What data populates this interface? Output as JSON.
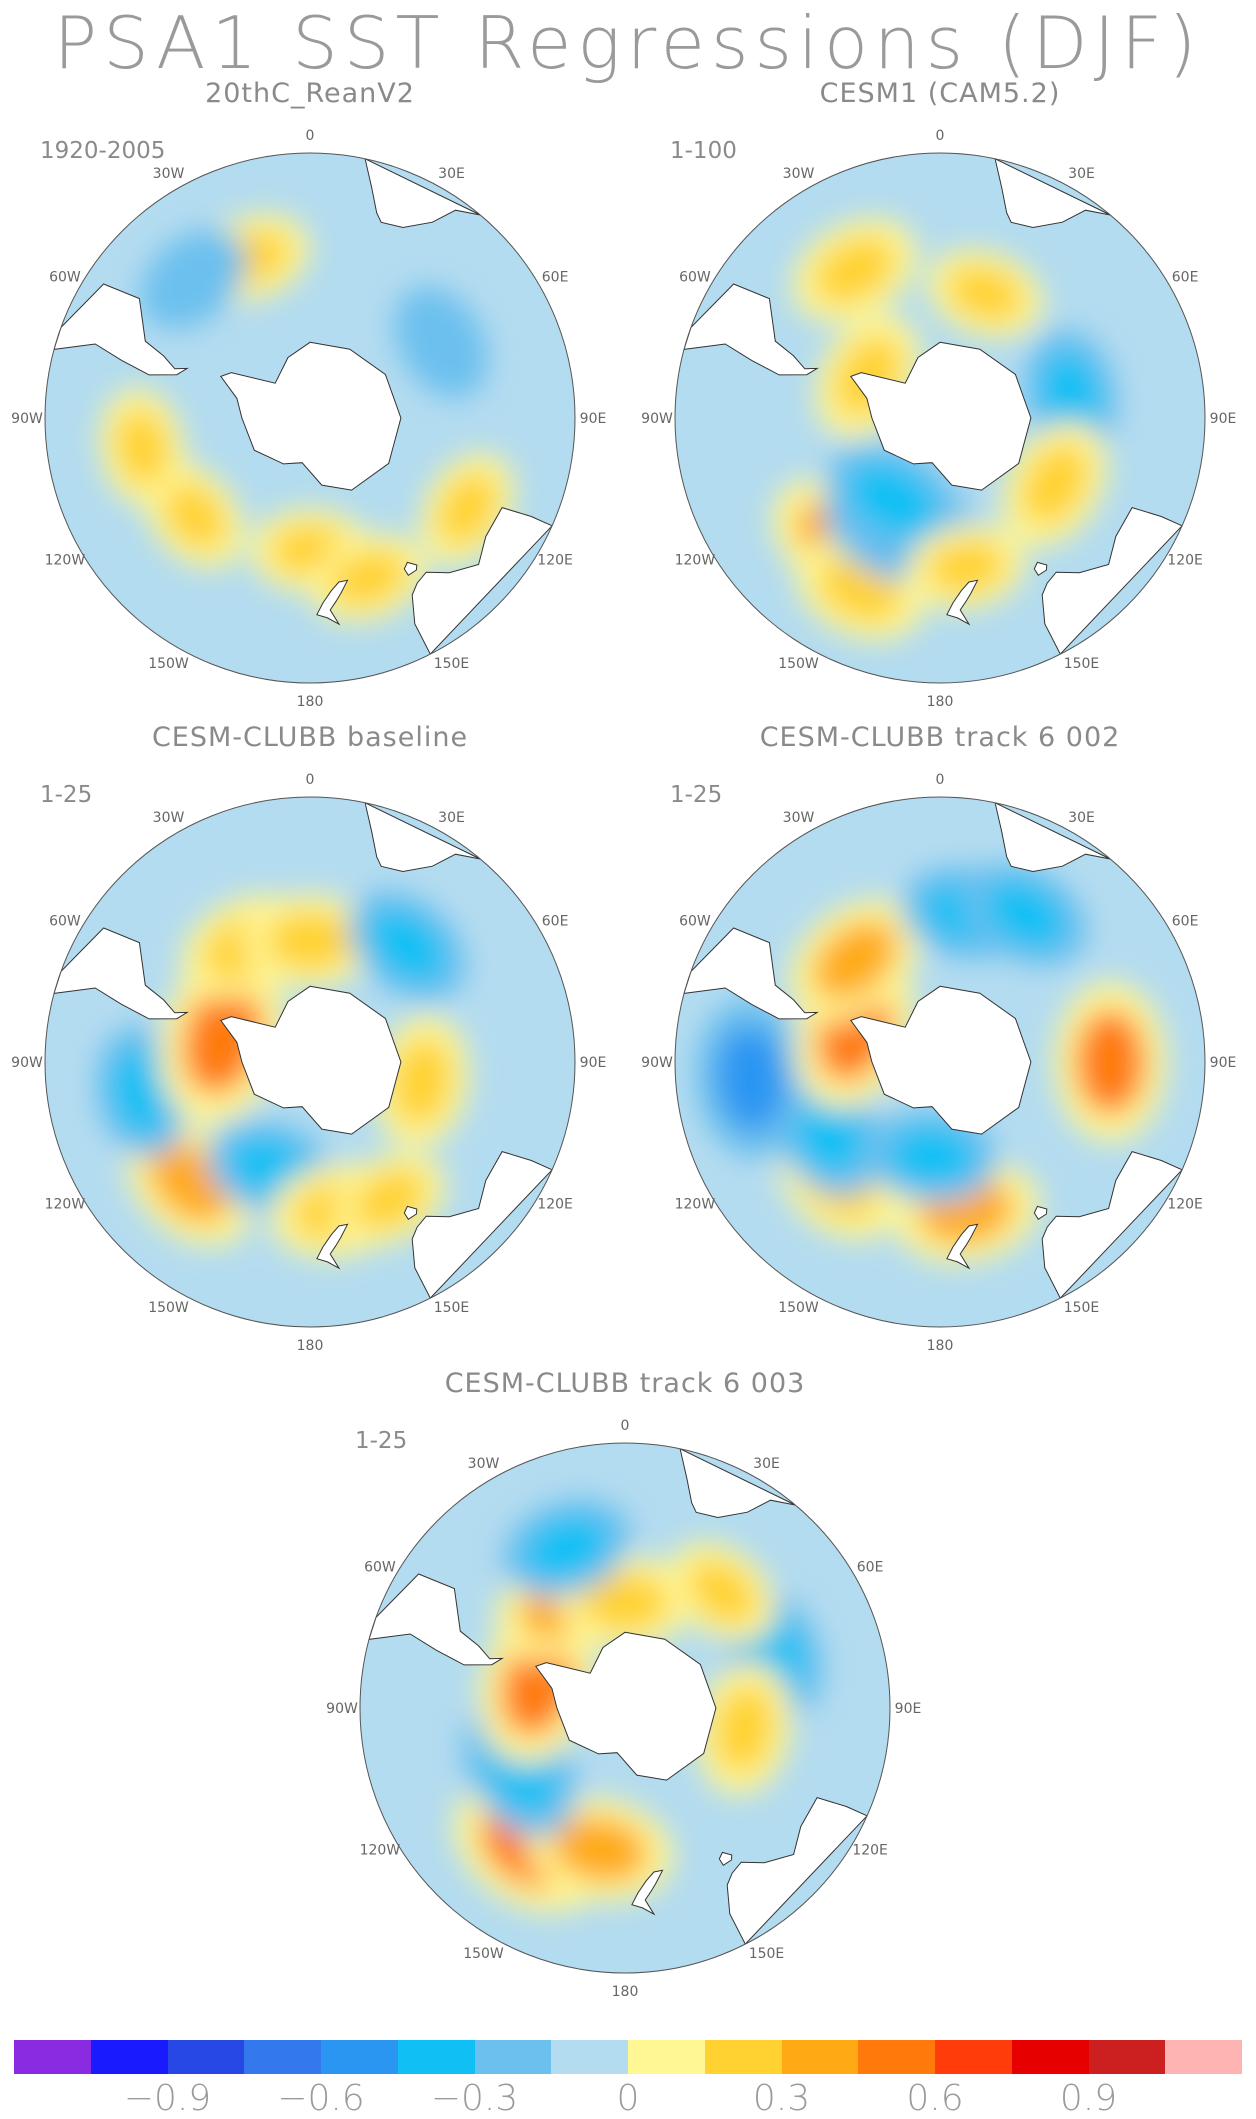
{
  "title": "PSA1 SST Regressions (DJF)",
  "panels": [
    {
      "title": "20thC_ReanV2",
      "period": "1920-2005",
      "blobs": [
        {
          "lon": 180,
          "lat": -55,
          "value": 0.2
        },
        {
          "lon": -130,
          "lat": -50,
          "value": 0.2
        },
        {
          "lon": -100,
          "lat": -45,
          "value": 0.2
        },
        {
          "lon": 160,
          "lat": -45,
          "value": 0.2
        },
        {
          "lon": 120,
          "lat": -42,
          "value": 0.2
        },
        {
          "lon": -20,
          "lat": -45,
          "value": 0.2
        },
        {
          "lon": -40,
          "lat": -42,
          "value": -0.2
        },
        {
          "lon": 60,
          "lat": -50,
          "value": -0.2
        }
      ]
    },
    {
      "title": "CESM1 (CAM5.2)",
      "period": "1-100",
      "blobs": [
        {
          "lon": -140,
          "lat": -48,
          "value": 0.4
        },
        {
          "lon": -155,
          "lat": -40,
          "value": 0.3
        },
        {
          "lon": -160,
          "lat": -60,
          "value": -0.5
        },
        {
          "lon": -150,
          "lat": -65,
          "value": -0.4
        },
        {
          "lon": -30,
          "lat": -45,
          "value": 0.3
        },
        {
          "lon": 80,
          "lat": -55,
          "value": -0.3
        },
        {
          "lon": 120,
          "lat": -55,
          "value": 0.3
        },
        {
          "lon": -60,
          "lat": -68,
          "value": 0.3
        },
        {
          "lon": 20,
          "lat": -55,
          "value": 0.2
        },
        {
          "lon": 170,
          "lat": -50,
          "value": 0.2
        }
      ]
    },
    {
      "title": "CESM-CLUBB baseline",
      "period": "1-25",
      "blobs": [
        {
          "lon": -135,
          "lat": -45,
          "value": 0.4
        },
        {
          "lon": -160,
          "lat": -60,
          "value": -0.3
        },
        {
          "lon": -100,
          "lat": -45,
          "value": -0.3
        },
        {
          "lon": -75,
          "lat": -66,
          "value": 0.6
        },
        {
          "lon": -30,
          "lat": -55,
          "value": 0.3
        },
        {
          "lon": 0,
          "lat": -58,
          "value": 0.3
        },
        {
          "lon": 40,
          "lat": -50,
          "value": -0.3
        },
        {
          "lon": 100,
          "lat": -60,
          "value": 0.3
        },
        {
          "lon": 170,
          "lat": -50,
          "value": 0.3
        },
        {
          "lon": 150,
          "lat": -48,
          "value": 0.2
        }
      ]
    },
    {
      "title": "CESM-CLUBB track 6 002",
      "period": "1-25",
      "blobs": [
        {
          "lon": -140,
          "lat": -48,
          "value": 0.3
        },
        {
          "lon": -120,
          "lat": -55,
          "value": -0.4
        },
        {
          "lon": -95,
          "lat": -40,
          "value": -0.5
        },
        {
          "lon": -70,
          "lat": -66,
          "value": 0.5
        },
        {
          "lon": -40,
          "lat": -55,
          "value": 0.4
        },
        {
          "lon": 10,
          "lat": -50,
          "value": -0.3
        },
        {
          "lon": 30,
          "lat": -45,
          "value": -0.3
        },
        {
          "lon": 90,
          "lat": -45,
          "value": 0.5
        },
        {
          "lon": 170,
          "lat": -50,
          "value": 0.4
        },
        {
          "lon": -175,
          "lat": -65,
          "value": -0.3
        }
      ]
    },
    {
      "title": "CESM-CLUBB track 6 003",
      "period": "1-25",
      "blobs": [
        {
          "lon": -145,
          "lat": -45,
          "value": 0.5
        },
        {
          "lon": -170,
          "lat": -52,
          "value": 0.4
        },
        {
          "lon": -120,
          "lat": -58,
          "value": -0.4
        },
        {
          "lon": -75,
          "lat": -66,
          "value": 0.5
        },
        {
          "lon": -30,
          "lat": -58,
          "value": 0.4
        },
        {
          "lon": 0,
          "lat": -62,
          "value": 0.3
        },
        {
          "lon": -20,
          "lat": -45,
          "value": -0.3
        },
        {
          "lon": 70,
          "lat": -48,
          "value": -0.3
        },
        {
          "lon": 100,
          "lat": -58,
          "value": 0.3
        },
        {
          "lon": 40,
          "lat": -50,
          "value": 0.2
        }
      ]
    }
  ],
  "lon_labels": [
    "0",
    "30E",
    "60E",
    "90E",
    "120E",
    "150E",
    "180",
    "150W",
    "120W",
    "90W",
    "60W",
    "30W"
  ],
  "colorbar": {
    "colors": [
      "#8a2be2",
      "#1a1aff",
      "#2848e6",
      "#3478ee",
      "#2a96f2",
      "#10c0f4",
      "#6cc0ee",
      "#b4dcf0",
      "#fff694",
      "#ffd232",
      "#ffaa14",
      "#ff7a0a",
      "#ff3c0a",
      "#e60000",
      "#cc1f1f",
      "#ffb4b4"
    ],
    "levels": [
      -1.05,
      -0.9,
      -0.75,
      -0.6,
      -0.45,
      -0.3,
      -0.15,
      0,
      0.15,
      0.3,
      0.45,
      0.6,
      0.75,
      0.9,
      1.05
    ],
    "labels": [
      "−0.9",
      "−0.6",
      "−0.3",
      "0",
      "0.3",
      "0.6",
      "0.9"
    ]
  }
}
